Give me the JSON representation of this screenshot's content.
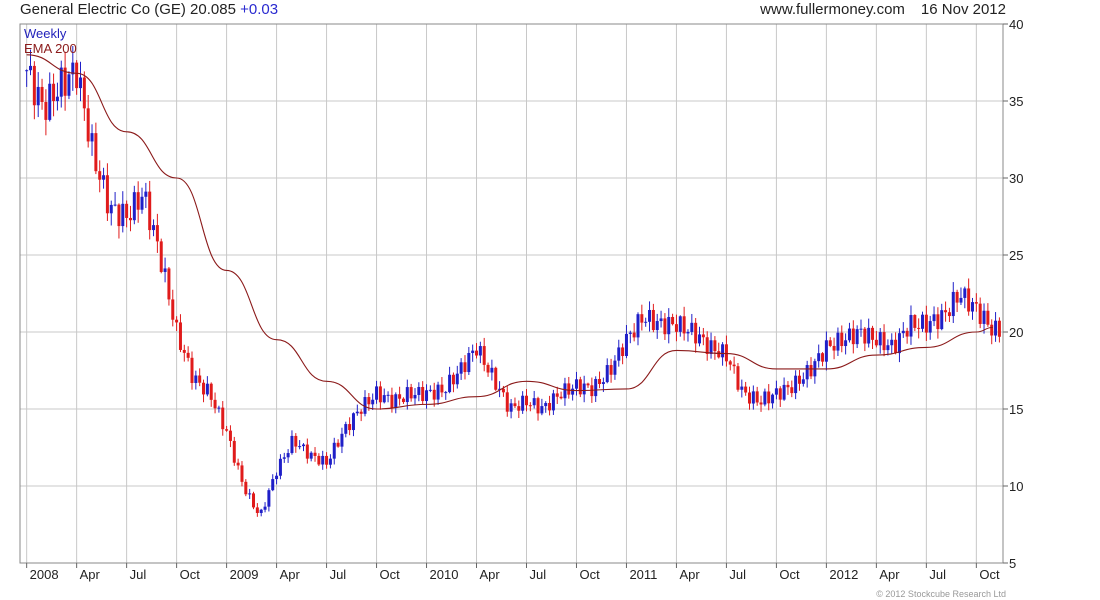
{
  "header": {
    "title": "General Electric Co (GE) 20.085",
    "change": "+0.03",
    "site": "www.fullermoney.com",
    "date": "16 Nov 2012"
  },
  "copyright": "© 2012 Stockcube Research Ltd",
  "colors": {
    "up": "#1f1fc8",
    "down": "#e01b1b",
    "ema": "#8b1a1a",
    "grid": "#c8c8c8",
    "legend_weekly": "#2222bb",
    "legend_ema": "#8b1a1a"
  },
  "chart_data": {
    "type": "candlestick",
    "legend": [
      "Weekly",
      "EMA 200"
    ],
    "ylim": [
      5,
      40
    ],
    "y_ticks": [
      40,
      35,
      30,
      25,
      20,
      15,
      10,
      5
    ],
    "x_ticks": [
      {
        "label": "2008",
        "x": "2008-01"
      },
      {
        "label": "Apr",
        "x": "2008-04"
      },
      {
        "label": "Jul",
        "x": "2008-07"
      },
      {
        "label": "Oct",
        "x": "2008-10"
      },
      {
        "label": "2009",
        "x": "2009-01"
      },
      {
        "label": "Apr",
        "x": "2009-04"
      },
      {
        "label": "Jul",
        "x": "2009-07"
      },
      {
        "label": "Oct",
        "x": "2009-10"
      },
      {
        "label": "2010",
        "x": "2010-01"
      },
      {
        "label": "Apr",
        "x": "2010-04"
      },
      {
        "label": "Jul",
        "x": "2010-07"
      },
      {
        "label": "Oct",
        "x": "2010-10"
      },
      {
        "label": "2011",
        "x": "2011-01"
      },
      {
        "label": "Apr",
        "x": "2011-04"
      },
      {
        "label": "Jul",
        "x": "2011-07"
      },
      {
        "label": "Oct",
        "x": "2011-10"
      },
      {
        "label": "2012",
        "x": "2012-01"
      },
      {
        "label": "Apr",
        "x": "2012-04"
      },
      {
        "label": "Jul",
        "x": "2012-07"
      },
      {
        "label": "Oct",
        "x": "2012-10"
      }
    ],
    "x_range": [
      "2008-01",
      "2012-11"
    ],
    "close_series": [
      [
        "2008-01",
        37.0
      ],
      [
        "2008-02",
        34.5
      ],
      [
        "2008-03",
        36.0
      ],
      [
        "2008-04",
        37.0
      ],
      [
        "2008-05",
        31.5
      ],
      [
        "2008-06",
        28.0
      ],
      [
        "2008-07",
        27.5
      ],
      [
        "2008-08",
        29.0
      ],
      [
        "2008-09",
        25.0
      ],
      [
        "2008-10",
        20.0
      ],
      [
        "2008-11",
        17.0
      ],
      [
        "2008-12",
        16.0
      ],
      [
        "2009-01",
        13.5
      ],
      [
        "2009-02",
        10.0
      ],
      [
        "2009-03",
        8.0
      ],
      [
        "2009-04",
        11.0
      ],
      [
        "2009-05",
        13.0
      ],
      [
        "2009-06",
        12.0
      ],
      [
        "2009-07",
        11.5
      ],
      [
        "2009-08",
        13.5
      ],
      [
        "2009-09",
        15.0
      ],
      [
        "2009-10",
        16.0
      ],
      [
        "2009-11",
        15.5
      ],
      [
        "2009-12",
        16.0
      ],
      [
        "2010-01",
        16.0
      ],
      [
        "2010-02",
        16.2
      ],
      [
        "2010-03",
        17.5
      ],
      [
        "2010-04",
        19.0
      ],
      [
        "2010-05",
        17.0
      ],
      [
        "2010-06",
        15.0
      ],
      [
        "2010-07",
        15.5
      ],
      [
        "2010-08",
        15.0
      ],
      [
        "2010-09",
        16.0
      ],
      [
        "2010-10",
        16.5
      ],
      [
        "2010-11",
        16.3
      ],
      [
        "2010-12",
        17.5
      ],
      [
        "2011-01",
        19.5
      ],
      [
        "2011-02",
        21.0
      ],
      [
        "2011-03",
        20.5
      ],
      [
        "2011-04",
        20.5
      ],
      [
        "2011-05",
        20.0
      ],
      [
        "2011-06",
        19.0
      ],
      [
        "2011-07",
        18.5
      ],
      [
        "2011-08",
        16.0
      ],
      [
        "2011-09",
        15.5
      ],
      [
        "2011-10",
        16.0
      ],
      [
        "2011-11",
        16.5
      ],
      [
        "2011-12",
        17.5
      ],
      [
        "2012-01",
        19.0
      ],
      [
        "2012-02",
        19.5
      ],
      [
        "2012-03",
        20.0
      ],
      [
        "2012-04",
        19.5
      ],
      [
        "2012-05",
        19.0
      ],
      [
        "2012-06",
        20.5
      ],
      [
        "2012-07",
        20.5
      ],
      [
        "2012-08",
        21.0
      ],
      [
        "2012-09",
        22.5
      ],
      [
        "2012-10",
        21.5
      ],
      [
        "2012-11",
        20.1
      ]
    ],
    "ema_200": [
      [
        "2008-01",
        38.0
      ],
      [
        "2008-04",
        36.8
      ],
      [
        "2008-07",
        33.0
      ],
      [
        "2008-10",
        30.0
      ],
      [
        "2009-01",
        24.0
      ],
      [
        "2009-04",
        19.5
      ],
      [
        "2009-07",
        16.8
      ],
      [
        "2009-10",
        15.0
      ],
      [
        "2010-01",
        15.3
      ],
      [
        "2010-04",
        15.8
      ],
      [
        "2010-07",
        16.8
      ],
      [
        "2010-10",
        16.2
      ],
      [
        "2011-01",
        16.3
      ],
      [
        "2011-04",
        18.8
      ],
      [
        "2011-07",
        18.6
      ],
      [
        "2011-10",
        17.6
      ],
      [
        "2012-01",
        17.6
      ],
      [
        "2012-04",
        18.5
      ],
      [
        "2012-07",
        19.0
      ],
      [
        "2012-10",
        20.0
      ],
      [
        "2012-11",
        20.3
      ]
    ]
  }
}
